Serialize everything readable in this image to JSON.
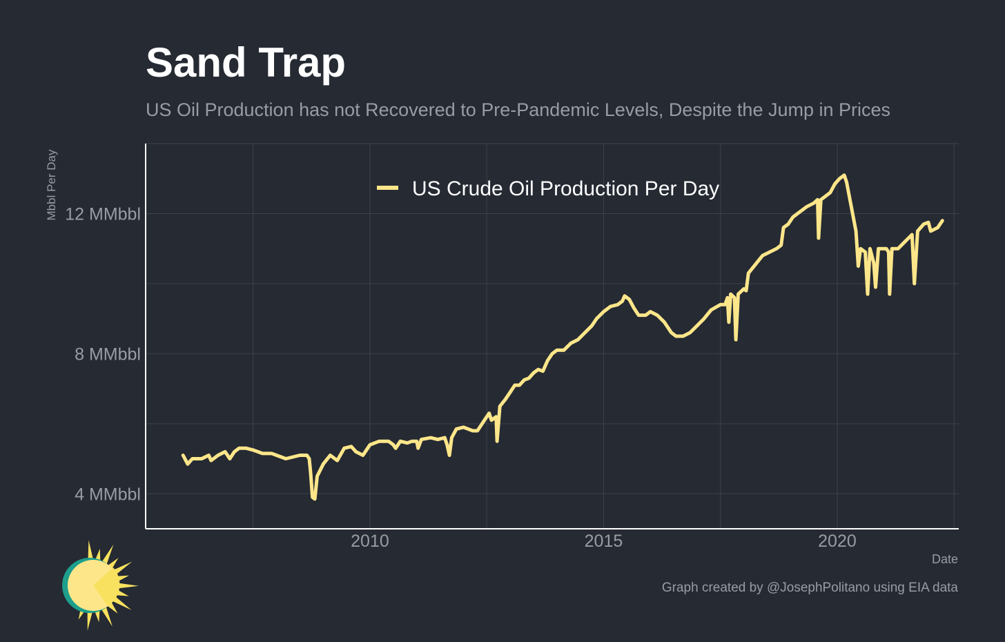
{
  "header": {
    "title": "Sand Trap",
    "subtitle": "US Oil Production has not Recovered to Pre-Pandemic Levels, Despite the Jump in Prices"
  },
  "footer": {
    "caption": "Graph created by @JosephPolitano using EIA data"
  },
  "colors": {
    "background": "#252a33",
    "grid": "#3d424b",
    "axis": "#ffffff",
    "line": "#fde68a",
    "muted_text": "#9a9ca3",
    "logo_ring": "#1e9e8c",
    "logo_sun": "#fde68a",
    "logo_rays": "#f8e15e"
  },
  "logo": {
    "icon": "sun-icon"
  },
  "chart_data": {
    "type": "line",
    "title": "Sand Trap",
    "subtitle": "US Oil Production has not Recovered to Pre-Pandemic Levels, Despite the Jump in Prices",
    "xlabel": "Date",
    "ylabel": "Mbbl Per Day",
    "xlim": [
      2005.2,
      2022.6
    ],
    "ylim": [
      3,
      14
    ],
    "x_ticks": [
      2010,
      2015,
      2020
    ],
    "x_tick_labels": [
      "2010",
      "2015",
      "2020"
    ],
    "x_minor_ticks": [
      2007.5,
      2012.5,
      2017.5,
      2022.5
    ],
    "y_ticks": [
      4,
      8,
      12
    ],
    "y_tick_labels": [
      "4 MMbbl",
      "8 MMbbl",
      "12 MMbbl"
    ],
    "y_minor_ticks": [
      6,
      10,
      14
    ],
    "grid": true,
    "legend": {
      "position": "top-center"
    },
    "series": [
      {
        "name": "US Crude Oil Production Per Day",
        "color": "#fde68a",
        "points": [
          [
            2006.0,
            5.1
          ],
          [
            2006.1,
            4.85
          ],
          [
            2006.2,
            5.0
          ],
          [
            2006.4,
            5.0
          ],
          [
            2006.55,
            5.1
          ],
          [
            2006.6,
            4.95
          ],
          [
            2006.75,
            5.1
          ],
          [
            2006.9,
            5.2
          ],
          [
            2007.0,
            5.0
          ],
          [
            2007.1,
            5.2
          ],
          [
            2007.2,
            5.3
          ],
          [
            2007.35,
            5.3
          ],
          [
            2007.5,
            5.25
          ],
          [
            2007.7,
            5.15
          ],
          [
            2007.9,
            5.15
          ],
          [
            2008.0,
            5.1
          ],
          [
            2008.2,
            5.0
          ],
          [
            2008.35,
            5.05
          ],
          [
            2008.5,
            5.1
          ],
          [
            2008.65,
            5.1
          ],
          [
            2008.7,
            5.0
          ],
          [
            2008.73,
            4.6
          ],
          [
            2008.77,
            3.9
          ],
          [
            2008.82,
            3.85
          ],
          [
            2008.87,
            4.5
          ],
          [
            2009.0,
            4.85
          ],
          [
            2009.15,
            5.1
          ],
          [
            2009.3,
            4.95
          ],
          [
            2009.45,
            5.3
          ],
          [
            2009.6,
            5.35
          ],
          [
            2009.7,
            5.2
          ],
          [
            2009.85,
            5.1
          ],
          [
            2010.0,
            5.4
          ],
          [
            2010.2,
            5.5
          ],
          [
            2010.4,
            5.5
          ],
          [
            2010.5,
            5.4
          ],
          [
            2010.55,
            5.3
          ],
          [
            2010.65,
            5.5
          ],
          [
            2010.8,
            5.45
          ],
          [
            2010.9,
            5.5
          ],
          [
            2011.0,
            5.5
          ],
          [
            2011.03,
            5.3
          ],
          [
            2011.1,
            5.55
          ],
          [
            2011.3,
            5.6
          ],
          [
            2011.45,
            5.55
          ],
          [
            2011.6,
            5.6
          ],
          [
            2011.65,
            5.4
          ],
          [
            2011.7,
            5.1
          ],
          [
            2011.75,
            5.6
          ],
          [
            2011.85,
            5.85
          ],
          [
            2012.0,
            5.9
          ],
          [
            2012.2,
            5.8
          ],
          [
            2012.3,
            5.8
          ],
          [
            2012.45,
            6.1
          ],
          [
            2012.55,
            6.3
          ],
          [
            2012.6,
            6.1
          ],
          [
            2012.7,
            6.2
          ],
          [
            2012.72,
            5.5
          ],
          [
            2012.78,
            6.5
          ],
          [
            2012.9,
            6.7
          ],
          [
            2013.0,
            6.9
          ],
          [
            2013.1,
            7.1
          ],
          [
            2013.2,
            7.1
          ],
          [
            2013.3,
            7.25
          ],
          [
            2013.4,
            7.3
          ],
          [
            2013.5,
            7.45
          ],
          [
            2013.6,
            7.55
          ],
          [
            2013.7,
            7.5
          ],
          [
            2013.8,
            7.8
          ],
          [
            2013.9,
            8.0
          ],
          [
            2014.0,
            8.1
          ],
          [
            2014.15,
            8.1
          ],
          [
            2014.3,
            8.3
          ],
          [
            2014.45,
            8.4
          ],
          [
            2014.6,
            8.6
          ],
          [
            2014.75,
            8.8
          ],
          [
            2014.85,
            9.0
          ],
          [
            2015.0,
            9.2
          ],
          [
            2015.15,
            9.35
          ],
          [
            2015.3,
            9.4
          ],
          [
            2015.4,
            9.5
          ],
          [
            2015.45,
            9.65
          ],
          [
            2015.55,
            9.55
          ],
          [
            2015.65,
            9.3
          ],
          [
            2015.75,
            9.1
          ],
          [
            2015.9,
            9.1
          ],
          [
            2016.0,
            9.2
          ],
          [
            2016.15,
            9.1
          ],
          [
            2016.3,
            8.9
          ],
          [
            2016.45,
            8.6
          ],
          [
            2016.55,
            8.5
          ],
          [
            2016.7,
            8.5
          ],
          [
            2016.85,
            8.6
          ],
          [
            2017.0,
            8.8
          ],
          [
            2017.15,
            9.0
          ],
          [
            2017.3,
            9.25
          ],
          [
            2017.5,
            9.4
          ],
          [
            2017.6,
            9.4
          ],
          [
            2017.65,
            9.6
          ],
          [
            2017.68,
            8.9
          ],
          [
            2017.72,
            9.7
          ],
          [
            2017.8,
            9.6
          ],
          [
            2017.83,
            8.4
          ],
          [
            2017.88,
            9.7
          ],
          [
            2018.0,
            9.85
          ],
          [
            2018.05,
            9.8
          ],
          [
            2018.1,
            10.3
          ],
          [
            2018.25,
            10.55
          ],
          [
            2018.4,
            10.8
          ],
          [
            2018.55,
            10.9
          ],
          [
            2018.7,
            11.0
          ],
          [
            2018.8,
            11.1
          ],
          [
            2018.85,
            11.6
          ],
          [
            2018.95,
            11.7
          ],
          [
            2019.05,
            11.9
          ],
          [
            2019.2,
            12.05
          ],
          [
            2019.35,
            12.2
          ],
          [
            2019.5,
            12.3
          ],
          [
            2019.58,
            12.4
          ],
          [
            2019.6,
            11.3
          ],
          [
            2019.65,
            12.4
          ],
          [
            2019.75,
            12.5
          ],
          [
            2019.85,
            12.6
          ],
          [
            2019.95,
            12.85
          ],
          [
            2020.05,
            13.0
          ],
          [
            2020.15,
            13.1
          ],
          [
            2020.2,
            12.9
          ],
          [
            2020.3,
            12.2
          ],
          [
            2020.4,
            11.5
          ],
          [
            2020.45,
            10.5
          ],
          [
            2020.5,
            11.0
          ],
          [
            2020.6,
            10.9
          ],
          [
            2020.65,
            9.7
          ],
          [
            2020.7,
            11.0
          ],
          [
            2020.78,
            10.6
          ],
          [
            2020.82,
            9.9
          ],
          [
            2020.88,
            11.0
          ],
          [
            2021.0,
            11.0
          ],
          [
            2021.05,
            11.0
          ],
          [
            2021.1,
            10.9
          ],
          [
            2021.12,
            9.7
          ],
          [
            2021.17,
            11.0
          ],
          [
            2021.3,
            11.0
          ],
          [
            2021.45,
            11.2
          ],
          [
            2021.6,
            11.4
          ],
          [
            2021.65,
            10.0
          ],
          [
            2021.72,
            11.5
          ],
          [
            2021.85,
            11.7
          ],
          [
            2021.95,
            11.75
          ],
          [
            2022.0,
            11.5
          ],
          [
            2022.15,
            11.6
          ],
          [
            2022.25,
            11.8
          ]
        ]
      }
    ]
  }
}
